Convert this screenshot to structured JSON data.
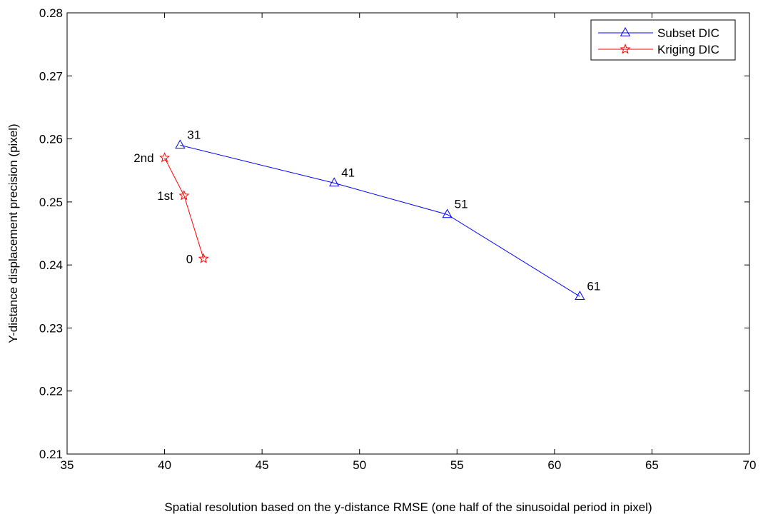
{
  "chart_data": {
    "type": "line",
    "title": "",
    "xlabel": "Spatial resolution based on the y-distance RMSE (one half of the sinusoidal period in pixel)",
    "ylabel": "Y-distance displacement precision (pixel)",
    "xlim": [
      35,
      70
    ],
    "ylim": [
      0.21,
      0.28
    ],
    "xticks": [
      35,
      40,
      45,
      50,
      55,
      60,
      65,
      70
    ],
    "yticks": [
      0.21,
      0.22,
      0.23,
      0.24,
      0.25,
      0.26,
      0.27,
      0.28
    ],
    "xtick_labels": [
      "35",
      "40",
      "45",
      "50",
      "55",
      "60",
      "65",
      "70"
    ],
    "ytick_labels": [
      "0.21",
      "0.22",
      "0.23",
      "0.24",
      "0.25",
      "0.26",
      "0.27",
      "0.28"
    ],
    "grid": false,
    "legend_position": "top-right",
    "series": [
      {
        "name": "Subset DIC",
        "color": "#0000ff",
        "marker": "triangle",
        "x": [
          40.8,
          48.7,
          54.5,
          61.3
        ],
        "y": [
          0.259,
          0.253,
          0.248,
          0.235
        ],
        "labels": [
          "31",
          "41",
          "51",
          "61"
        ],
        "label_side": "right"
      },
      {
        "name": "Kriging DIC",
        "color": "#ff0000",
        "marker": "star",
        "x": [
          40.0,
          41.0,
          42.0
        ],
        "y": [
          0.257,
          0.251,
          0.241
        ],
        "labels": [
          "2nd",
          "1st",
          "0"
        ],
        "label_side": "left"
      }
    ]
  }
}
